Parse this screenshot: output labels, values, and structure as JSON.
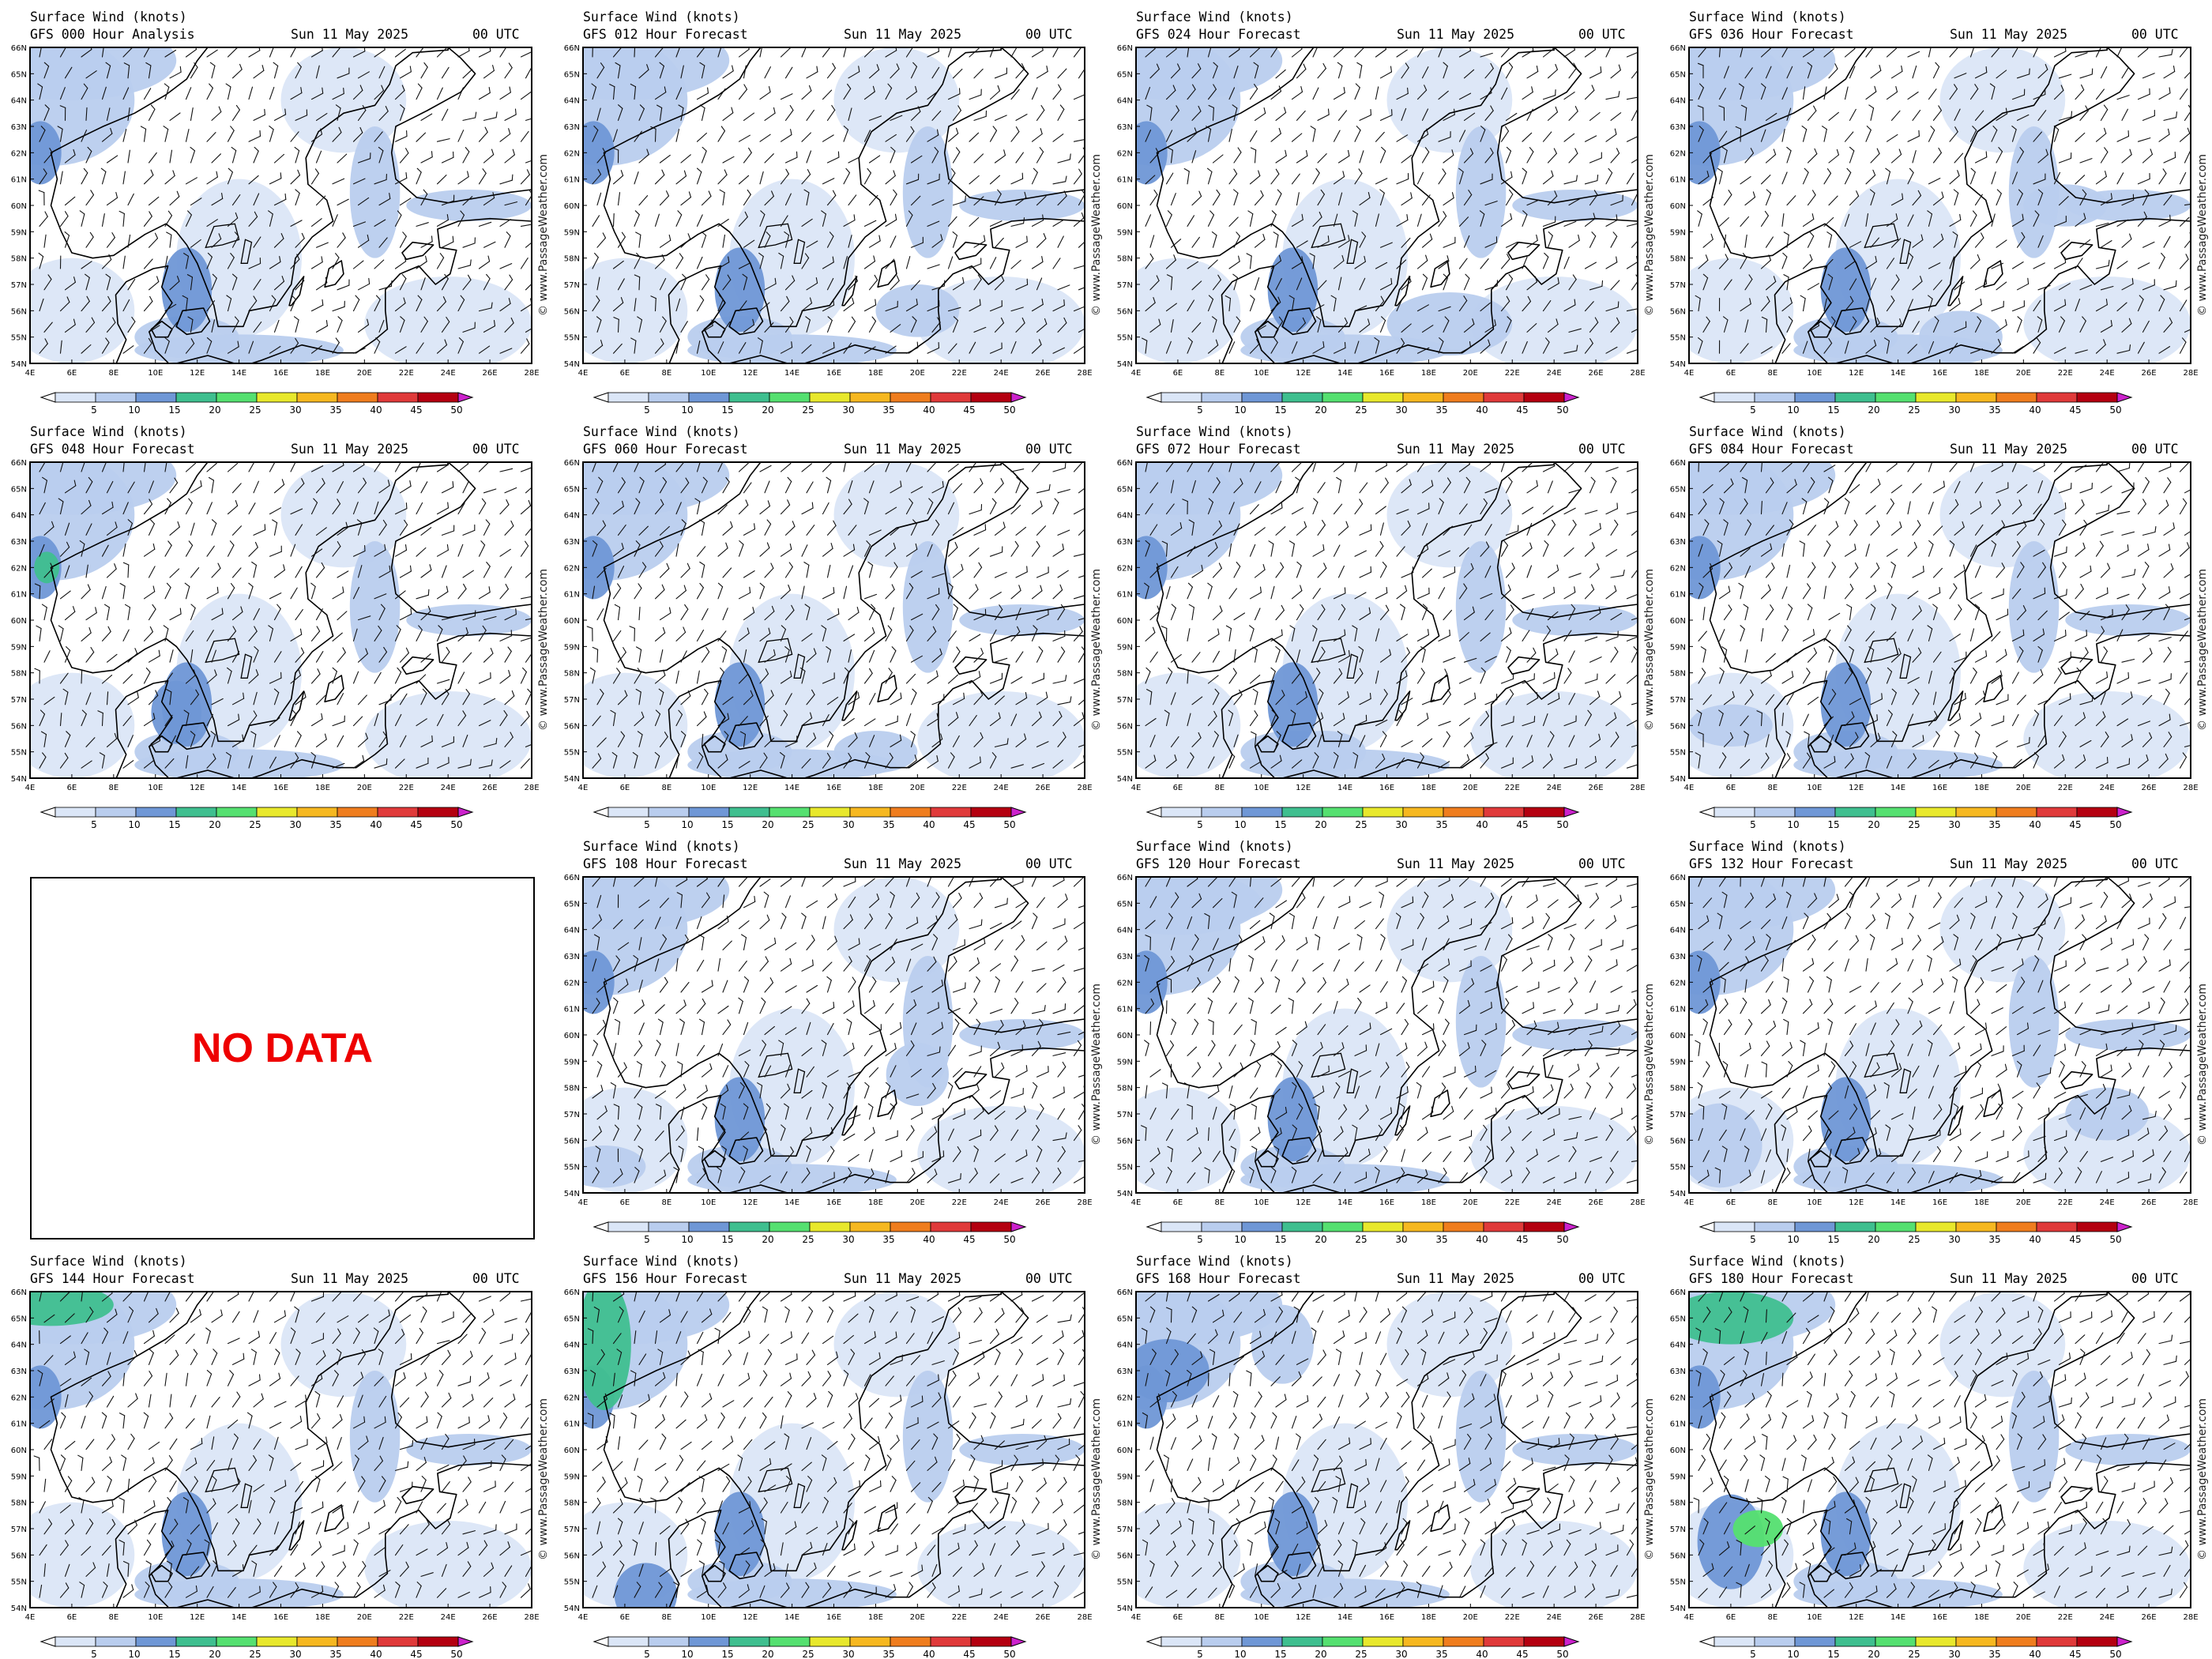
{
  "title_line": "Surface Wind (knots)",
  "date_text": "Sun 11 May 2025",
  "utc_text": "00 UTC",
  "credit_text": "© www.PassageWeather.com",
  "no_data_text": "NO DATA",
  "lon_labels": [
    "4E",
    "6E",
    "8E",
    "10E",
    "12E",
    "14E",
    "16E",
    "18E",
    "20E",
    "22E",
    "24E",
    "26E",
    "28E"
  ],
  "lat_labels": [
    "54N",
    "55N",
    "56N",
    "57N",
    "58N",
    "59N",
    "60N",
    "61N",
    "62N",
    "63N",
    "64N",
    "65N",
    "66N"
  ],
  "colorbar": {
    "ticks": [
      "5",
      "10",
      "15",
      "20",
      "25",
      "30",
      "35",
      "40",
      "45",
      "50"
    ],
    "colors": [
      "#ffffff",
      "#dbe6f7",
      "#b9cdee",
      "#6f97d6",
      "#3fbf8f",
      "#55e070",
      "#e8e82c",
      "#f6b820",
      "#ef7d1e",
      "#e03a3a",
      "#b40010",
      "#cc22cc"
    ]
  },
  "panels": [
    {
      "label": "GFS 000 Hour Analysis",
      "status": "data"
    },
    {
      "label": "GFS 012 Hour Forecast",
      "status": "data"
    },
    {
      "label": "GFS 024 Hour Forecast",
      "status": "data"
    },
    {
      "label": "GFS 036 Hour Forecast",
      "status": "data"
    },
    {
      "label": "GFS 048 Hour Forecast",
      "status": "data"
    },
    {
      "label": "GFS 060 Hour Forecast",
      "status": "data"
    },
    {
      "label": "GFS 072 Hour Forecast",
      "status": "data"
    },
    {
      "label": "GFS 084 Hour Forecast",
      "status": "data"
    },
    {
      "label": "",
      "status": "nodata"
    },
    {
      "label": "GFS 108 Hour Forecast",
      "status": "data"
    },
    {
      "label": "GFS 120 Hour Forecast",
      "status": "data"
    },
    {
      "label": "GFS 132 Hour Forecast",
      "status": "data"
    },
    {
      "label": "GFS 144 Hour Forecast",
      "status": "data"
    },
    {
      "label": "GFS 156 Hour Forecast",
      "status": "data"
    },
    {
      "label": "GFS 168 Hour Forecast",
      "status": "data"
    },
    {
      "label": "GFS 180 Hour Forecast",
      "status": "data"
    }
  ]
}
